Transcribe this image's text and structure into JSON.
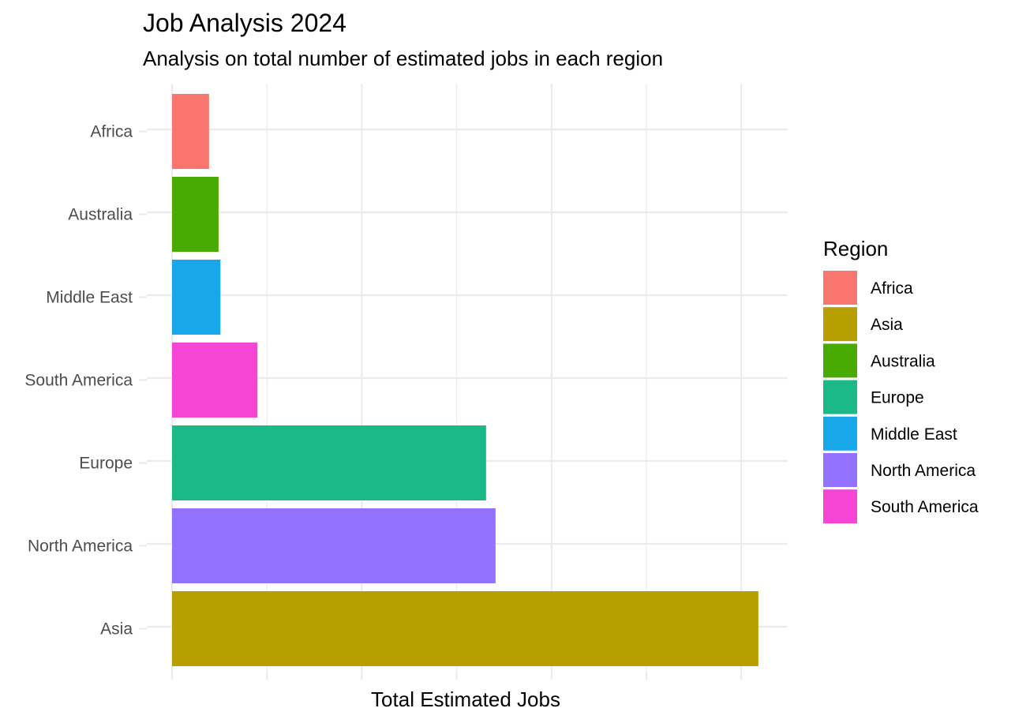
{
  "chart_data": {
    "type": "bar",
    "orientation": "horizontal",
    "title": "Job Analysis 2024",
    "subtitle": "Analysis on total number of estimated jobs in each region",
    "xlabel": "Total Estimated Jobs",
    "ylabel": "",
    "x_tick_labels_shown": false,
    "xlim": [
      0,
      3
    ],
    "grid": true,
    "legend_title": "Region",
    "legend_position": "right",
    "categories": [
      "Africa",
      "Australia",
      "Middle East",
      "South America",
      "Europe",
      "North America",
      "Asia"
    ],
    "values": [
      0.195,
      0.245,
      0.255,
      0.45,
      1.655,
      1.705,
      3.09
    ],
    "colors": {
      "Africa": "#F8766D",
      "Asia": "#B79F00",
      "Australia": "#49AA00",
      "Europe": "#1AB987",
      "Middle East": "#18A7E9",
      "North America": "#9272FF",
      "South America": "#F545D4"
    },
    "legend": [
      "Africa",
      "Asia",
      "Australia",
      "Europe",
      "Middle East",
      "North America",
      "South America"
    ]
  }
}
